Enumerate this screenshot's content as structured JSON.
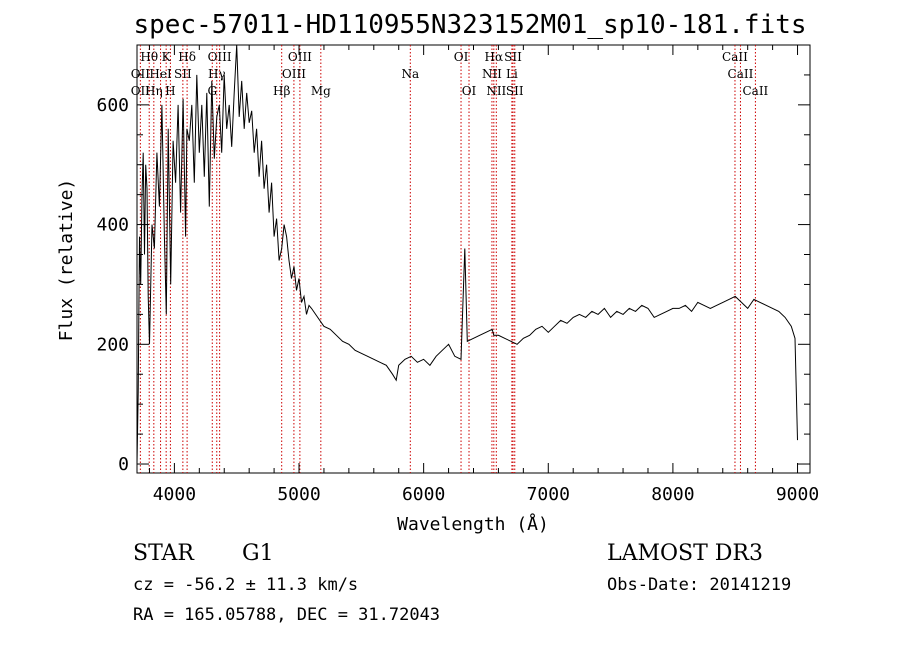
{
  "chart_data": {
    "type": "line",
    "title": "spec-57011-HD110955N323152M01_sp10-181.fits",
    "xlabel": "Wavelength (Å)",
    "ylabel": "Flux (relative)",
    "xlim": [
      3700,
      9100
    ],
    "ylim": [
      -15,
      700
    ],
    "x_ticks": [
      4000,
      5000,
      6000,
      7000,
      8000,
      9000
    ],
    "y_ticks": [
      0,
      200,
      400,
      600
    ],
    "grid": false,
    "series": [
      {
        "color": "#000000",
        "x": [
          3700,
          3710,
          3720,
          3730,
          3740,
          3750,
          3760,
          3770,
          3780,
          3790,
          3800,
          3820,
          3840,
          3860,
          3880,
          3900,
          3920,
          3935,
          3950,
          3970,
          3990,
          4010,
          4030,
          4050,
          4070,
          4090,
          4100,
          4120,
          4140,
          4160,
          4180,
          4200,
          4220,
          4240,
          4260,
          4280,
          4300,
          4320,
          4340,
          4360,
          4380,
          4400,
          4420,
          4440,
          4460,
          4480,
          4500,
          4520,
          4540,
          4560,
          4580,
          4600,
          4620,
          4640,
          4660,
          4680,
          4700,
          4720,
          4740,
          4760,
          4780,
          4800,
          4820,
          4840,
          4861,
          4880,
          4900,
          4920,
          4940,
          4960,
          4980,
          5000,
          5020,
          5040,
          5060,
          5080,
          5100,
          5150,
          5200,
          5250,
          5300,
          5350,
          5400,
          5450,
          5500,
          5550,
          5600,
          5650,
          5700,
          5750,
          5780,
          5800,
          5850,
          5900,
          5950,
          6000,
          6050,
          6100,
          6150,
          6200,
          6250,
          6300,
          6330,
          6350,
          6400,
          6450,
          6500,
          6550,
          6563,
          6600,
          6650,
          6700,
          6750,
          6800,
          6850,
          6900,
          6950,
          7000,
          7050,
          7100,
          7150,
          7200,
          7250,
          7300,
          7350,
          7400,
          7450,
          7500,
          7550,
          7600,
          7650,
          7700,
          7750,
          7800,
          7850,
          7900,
          7950,
          8000,
          8050,
          8100,
          8150,
          8200,
          8250,
          8300,
          8350,
          8400,
          8450,
          8500,
          8550,
          8600,
          8650,
          8700,
          8750,
          8800,
          8850,
          8900,
          8950,
          8980,
          9000
        ],
        "y": [
          0,
          120,
          380,
          300,
          450,
          520,
          350,
          500,
          460,
          280,
          200,
          400,
          360,
          520,
          430,
          600,
          380,
          250,
          560,
          300,
          540,
          470,
          600,
          420,
          610,
          380,
          560,
          540,
          600,
          470,
          650,
          520,
          600,
          480,
          620,
          430,
          640,
          510,
          580,
          600,
          520,
          650,
          560,
          600,
          530,
          620,
          700,
          580,
          640,
          560,
          620,
          570,
          590,
          520,
          560,
          480,
          540,
          460,
          500,
          420,
          470,
          380,
          410,
          340,
          360,
          400,
          380,
          340,
          310,
          330,
          290,
          310,
          270,
          280,
          250,
          265,
          260,
          245,
          230,
          225,
          215,
          205,
          200,
          190,
          185,
          180,
          175,
          170,
          165,
          150,
          140,
          165,
          175,
          180,
          170,
          175,
          165,
          180,
          190,
          200,
          180,
          175,
          360,
          205,
          210,
          215,
          220,
          225,
          215,
          215,
          210,
          205,
          200,
          210,
          215,
          225,
          230,
          220,
          230,
          240,
          235,
          245,
          250,
          245,
          255,
          250,
          260,
          245,
          255,
          250,
          260,
          255,
          265,
          260,
          245,
          250,
          255,
          260,
          260,
          265,
          255,
          270,
          265,
          260,
          265,
          270,
          275,
          280,
          270,
          260,
          275,
          270,
          265,
          260,
          255,
          245,
          230,
          210,
          40
        ]
      }
    ],
    "line_labels": [
      {
        "text": "Hθ",
        "wl": 3798,
        "row": 1
      },
      {
        "text": "OII",
        "wl": 3727,
        "row": 2
      },
      {
        "text": "OII",
        "wl": 3727,
        "row": 3
      },
      {
        "text": "K",
        "wl": 3934,
        "row": 1
      },
      {
        "text": "HeI",
        "wl": 3889,
        "row": 2
      },
      {
        "text": "Hη",
        "wl": 3835,
        "row": 3
      },
      {
        "text": "Hδ",
        "wl": 4102,
        "row": 1
      },
      {
        "text": "SII",
        "wl": 4068,
        "row": 2
      },
      {
        "text": "H",
        "wl": 3968,
        "row": 3
      },
      {
        "text": "OIII",
        "wl": 4363,
        "row": 1
      },
      {
        "text": "Hγ",
        "wl": 4340,
        "row": 2
      },
      {
        "text": "G",
        "wl": 4304,
        "row": 3
      },
      {
        "text": "Hβ",
        "wl": 4861,
        "row": 3
      },
      {
        "text": "OIII",
        "wl": 5007,
        "row": 1
      },
      {
        "text": "OIII",
        "wl": 4959,
        "row": 2
      },
      {
        "text": "Mg",
        "wl": 5175,
        "row": 3
      },
      {
        "text": "Na",
        "wl": 5893,
        "row": 2
      },
      {
        "text": "OI",
        "wl": 6300,
        "row": 1
      },
      {
        "text": "OI",
        "wl": 6364,
        "row": 3
      },
      {
        "text": "Hα",
        "wl": 6563,
        "row": 1
      },
      {
        "text": "SII",
        "wl": 6717,
        "row": 1
      },
      {
        "text": "NII",
        "wl": 6548,
        "row": 2
      },
      {
        "text": "Li",
        "wl": 6708,
        "row": 2
      },
      {
        "text": "NII",
        "wl": 6583,
        "row": 3
      },
      {
        "text": "SII",
        "wl": 6731,
        "row": 3
      },
      {
        "text": "CaII",
        "wl": 8498,
        "row": 1
      },
      {
        "text": "CaII",
        "wl": 8542,
        "row": 2
      },
      {
        "text": "CaII",
        "wl": 8662,
        "row": 3
      }
    ],
    "line_markers": [
      3727,
      3798,
      3835,
      3889,
      3934,
      3968,
      4068,
      4102,
      4304,
      4340,
      4363,
      4861,
      4959,
      5007,
      5175,
      5893,
      6300,
      6364,
      6548,
      6563,
      6583,
      6708,
      6717,
      6731,
      8498,
      8542,
      8662
    ]
  },
  "info": {
    "class": "STAR",
    "subclass": "G1",
    "survey": "LAMOST DR3",
    "cz": "cz = -56.2 ± 11.3 km/s",
    "obs_date": "Obs-Date: 20141219",
    "coords": "RA = 165.05788, DEC =  31.72043"
  }
}
